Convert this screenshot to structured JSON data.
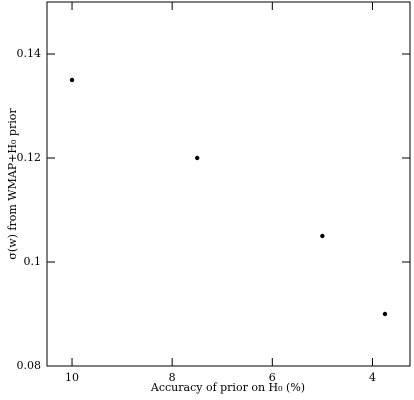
{
  "chart_data": {
    "type": "scatter",
    "x_label": "Accuracy of prior on H₀ (%)",
    "y_label": "σ(w) from WMAP+H₀ prior",
    "x": [
      10,
      7.5,
      5,
      3.75
    ],
    "values": [
      0.135,
      0.12,
      0.105,
      0.09
    ],
    "color": "#000000",
    "xlim": [
      10.5,
      3.25
    ],
    "xticks": [
      10,
      8,
      6,
      4
    ],
    "ylim": [
      0.08,
      0.15
    ],
    "yticks": [
      0.08,
      0.1,
      0.12,
      0.14
    ]
  }
}
